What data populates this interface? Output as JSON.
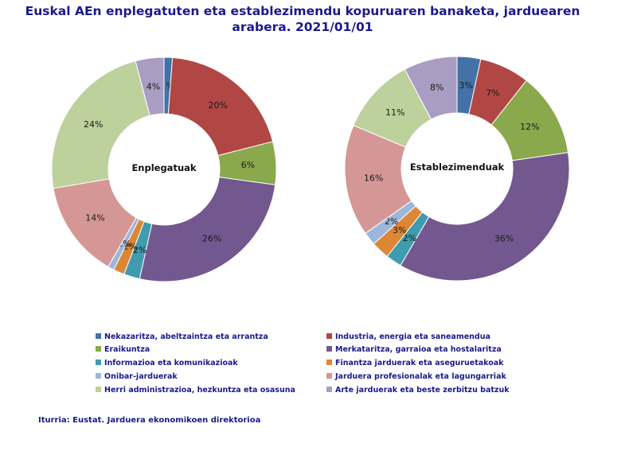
{
  "title_line1": "Euskal AEn enplegatuten eta establezimendu kopuruaren banaketa, jarduearen",
  "title_line2": "arabera. 2021/01/01",
  "chart_data": [
    {
      "type": "pie",
      "center_label": "Enplegatuak",
      "labels": [
        "1%",
        "20%",
        "6%",
        "26%",
        "2%",
        "2%",
        "1%",
        "14%",
        "24%",
        "4%"
      ],
      "values": [
        1.2,
        19.8,
        6.2,
        26.3,
        2.3,
        1.6,
        0.9,
        14.0,
        23.6,
        4.1
      ]
    },
    {
      "type": "pie",
      "center_label": "Establezimenduak",
      "labels": [
        "3%",
        "7%",
        "12%",
        "36%",
        "2%",
        "3%",
        "2%",
        "16%",
        "11%",
        "8%"
      ],
      "values": [
        3.4,
        7.2,
        12.1,
        35.7,
        2.3,
        2.6,
        1.9,
        16.1,
        11.0,
        7.7
      ]
    }
  ],
  "categories": [
    {
      "name": "Nekazaritza, abeltzaintza eta arrantza",
      "color": "#4472a8"
    },
    {
      "name": "Industria, energia eta saneamendua",
      "color": "#b14744"
    },
    {
      "name": "Eraikuntza",
      "color": "#8aa84c"
    },
    {
      "name": "Merkataritza, garraioa eta hostalaritza",
      "color": "#73588f"
    },
    {
      "name": "Informazioa eta komunikazioak",
      "color": "#3f9bae"
    },
    {
      "name": "Finantza jarduerak eta aseguruetakoak",
      "color": "#dd8635"
    },
    {
      "name": "Onibar-jarduerak",
      "color": "#9db7dc"
    },
    {
      "name": "Jarduera profesionalak eta lagungarriak",
      "color": "#d59795"
    },
    {
      "name": "Herri administrazioa, hezkuntza eta osasuna",
      "color": "#bcd19b"
    },
    {
      "name": "Arte jarduerak eta beste zerbitzu batzuk",
      "color": "#a99dc3"
    }
  ],
  "source": "Iturria: Eustat. Jarduera ekonomikoen direktorioa"
}
